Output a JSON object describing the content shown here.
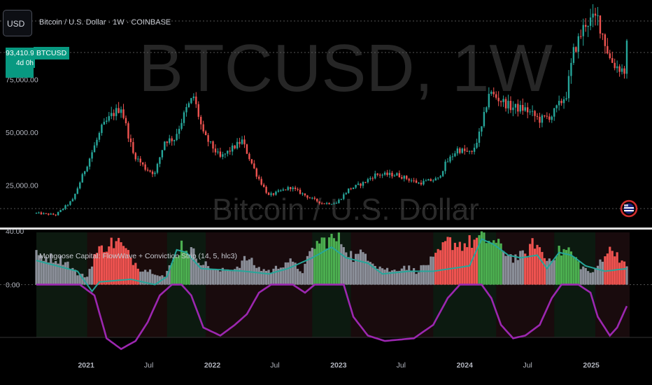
{
  "toolbar": {
    "currency_button": "USD"
  },
  "symbol": {
    "title": "Bitcoin / U.S. Dollar · 1W · COINBASE",
    "ticker": "BTCUSD",
    "price_label": "93,410.97",
    "countdown": "4d 0h"
  },
  "watermark": {
    "ticker": "BTCUSD, 1W",
    "name": "Bitcoin / U.S. Dollar"
  },
  "indicator": {
    "label": "Mongoose Capital: FlowWave + Conviction Strip (14, 5, hlc3)"
  },
  "colors": {
    "bull": "#26a69a",
    "bear": "#ef5350",
    "flow": "#26a69a",
    "wave": "#9c27b0",
    "bar_gray": "#8b8f99",
    "bar_red": "#ef5350",
    "bar_green": "#4caf50"
  },
  "chart_data": [
    {
      "type": "candlestick",
      "title": "Bitcoin / U.S. Dollar · 1W · COINBASE",
      "y_ticks": [
        "25,000.00",
        "50,000.00",
        "75,000.00"
      ],
      "ylim": [
        5000,
        110000
      ],
      "x_ticks": [
        "2021",
        "Jul",
        "2022",
        "Jul",
        "2023",
        "Jul",
        "2024",
        "Jul",
        "2025"
      ],
      "x_tick_dates": [
        "2021-01-01",
        "2021-07-01",
        "2022-01-01",
        "2022-07-01",
        "2023-01-01",
        "2023-07-01",
        "2024-01-01",
        "2024-07-01",
        "2025-01-01"
      ],
      "date_range": [
        "2020-08-10",
        "2025-04-14"
      ],
      "last_price": 93410.97,
      "close_path": [
        [
          "2020-08-10",
          11800
        ],
        [
          "2020-10-05",
          11000
        ],
        [
          "2020-11-23",
          18000
        ],
        [
          "2021-01-04",
          35000
        ],
        [
          "2021-02-15",
          52000
        ],
        [
          "2021-03-15",
          58000
        ],
        [
          "2021-04-12",
          62000
        ],
        [
          "2021-05-17",
          40000
        ],
        [
          "2021-06-21",
          33000
        ],
        [
          "2021-07-19",
          30500
        ],
        [
          "2021-08-16",
          46000
        ],
        [
          "2021-09-13",
          47000
        ],
        [
          "2021-10-18",
          61000
        ],
        [
          "2021-11-08",
          67000
        ],
        [
          "2021-12-06",
          49000
        ],
        [
          "2022-01-24",
          38000
        ],
        [
          "2022-03-28",
          46000
        ],
        [
          "2022-05-09",
          30000
        ],
        [
          "2022-06-13",
          20000
        ],
        [
          "2022-08-15",
          24000
        ],
        [
          "2022-10-10",
          19000
        ],
        [
          "2022-11-14",
          16500
        ],
        [
          "2022-12-26",
          16600
        ],
        [
          "2023-01-30",
          23000
        ],
        [
          "2023-03-13",
          26000
        ],
        [
          "2023-04-17",
          30000
        ],
        [
          "2023-06-19",
          30000
        ],
        [
          "2023-08-21",
          26000
        ],
        [
          "2023-10-16",
          28000
        ],
        [
          "2023-11-06",
          35000
        ],
        [
          "2023-12-11",
          42000
        ],
        [
          "2024-01-22",
          40000
        ],
        [
          "2024-02-19",
          52000
        ],
        [
          "2024-03-11",
          69000
        ],
        [
          "2024-05-13",
          62000
        ],
        [
          "2024-06-24",
          61000
        ],
        [
          "2024-08-05",
          56000
        ],
        [
          "2024-09-09",
          58000
        ],
        [
          "2024-10-21",
          68000
        ],
        [
          "2024-11-11",
          88000
        ],
        [
          "2024-12-16",
          102000
        ],
        [
          "2025-01-20",
          104000
        ],
        [
          "2025-02-24",
          85000
        ],
        [
          "2025-03-10",
          82000
        ],
        [
          "2025-04-07",
          79000
        ],
        [
          "2025-04-14",
          93410.97
        ]
      ]
    },
    {
      "type": "bar",
      "title": "Mongoose Capital: FlowWave + Conviction Strip (14, 5, hlc3)",
      "y_ticks": [
        "40.00",
        "0.00"
      ],
      "ylim": [
        -55,
        40
      ],
      "bar_anchors": [
        [
          "2020-08-10",
          22,
          "gray"
        ],
        [
          "2020-11-02",
          18,
          "gray"
        ],
        [
          "2020-12-07",
          8,
          "gray"
        ],
        [
          "2021-01-04",
          6,
          "gray"
        ],
        [
          "2021-01-25",
          22,
          "red"
        ],
        [
          "2021-03-01",
          30,
          "red"
        ],
        [
          "2021-04-05",
          32,
          "red"
        ],
        [
          "2021-05-10",
          20,
          "red"
        ],
        [
          "2021-06-07",
          12,
          "gray"
        ],
        [
          "2021-07-12",
          10,
          "gray"
        ],
        [
          "2021-08-16",
          6,
          "gray"
        ],
        [
          "2021-09-06",
          16,
          "green"
        ],
        [
          "2021-10-04",
          30,
          "green"
        ],
        [
          "2021-11-01",
          25,
          "gray"
        ],
        [
          "2021-12-06",
          16,
          "gray"
        ],
        [
          "2022-01-17",
          10,
          "gray"
        ],
        [
          "2022-03-07",
          12,
          "gray"
        ],
        [
          "2022-04-11",
          20,
          "gray"
        ],
        [
          "2022-05-16",
          12,
          "gray"
        ],
        [
          "2022-06-20",
          10,
          "gray"
        ],
        [
          "2022-08-08",
          18,
          "gray"
        ],
        [
          "2022-09-19",
          10,
          "gray"
        ],
        [
          "2022-10-24",
          30,
          "green"
        ],
        [
          "2022-12-05",
          34,
          "green"
        ],
        [
          "2023-01-09",
          33,
          "gray"
        ],
        [
          "2023-02-13",
          20,
          "gray"
        ],
        [
          "2023-03-20",
          24,
          "gray"
        ],
        [
          "2023-04-24",
          14,
          "gray"
        ],
        [
          "2023-06-05",
          10,
          "gray"
        ],
        [
          "2023-07-10",
          14,
          "gray"
        ],
        [
          "2023-08-14",
          10,
          "gray"
        ],
        [
          "2023-10-09",
          20,
          "red"
        ],
        [
          "2023-11-13",
          32,
          "red"
        ],
        [
          "2024-01-01",
          30,
          "red"
        ],
        [
          "2024-02-12",
          34,
          "green"
        ],
        [
          "2024-03-18",
          33,
          "green"
        ],
        [
          "2024-04-22",
          26,
          "gray"
        ],
        [
          "2024-05-20",
          20,
          "gray"
        ],
        [
          "2024-06-24",
          22,
          "red"
        ],
        [
          "2024-07-22",
          32,
          "red"
        ],
        [
          "2024-08-26",
          18,
          "gray"
        ],
        [
          "2024-09-23",
          24,
          "green"
        ],
        [
          "2024-10-28",
          26,
          "green"
        ],
        [
          "2024-12-02",
          14,
          "gray"
        ],
        [
          "2025-01-06",
          8,
          "gray"
        ],
        [
          "2025-02-10",
          24,
          "red"
        ],
        [
          "2025-03-10",
          26,
          "red"
        ],
        [
          "2025-04-14",
          12,
          "gray"
        ]
      ],
      "flow_path": [
        [
          "2020-08-10",
          18
        ],
        [
          "2020-12-07",
          10
        ],
        [
          "2021-01-18",
          -5
        ],
        [
          "2021-02-08",
          2
        ],
        [
          "2021-05-10",
          4
        ],
        [
          "2021-07-19",
          0
        ],
        [
          "2021-08-23",
          6
        ],
        [
          "2021-09-20",
          26
        ],
        [
          "2021-10-18",
          24
        ],
        [
          "2021-11-29",
          12
        ],
        [
          "2022-04-04",
          10
        ],
        [
          "2022-06-13",
          8
        ],
        [
          "2022-08-08",
          12
        ],
        [
          "2022-10-17",
          20
        ],
        [
          "2022-12-12",
          28
        ],
        [
          "2023-01-23",
          20
        ],
        [
          "2023-03-27",
          16
        ],
        [
          "2023-05-08",
          8
        ],
        [
          "2023-07-24",
          10
        ],
        [
          "2023-10-02",
          10
        ],
        [
          "2024-01-15",
          14
        ],
        [
          "2024-02-19",
          34
        ],
        [
          "2024-03-25",
          30
        ],
        [
          "2024-05-06",
          22
        ],
        [
          "2024-06-10",
          20
        ],
        [
          "2024-07-29",
          22
        ],
        [
          "2024-08-26",
          12
        ],
        [
          "2024-09-30",
          24
        ],
        [
          "2024-11-04",
          22
        ],
        [
          "2024-12-16",
          14
        ],
        [
          "2025-02-10",
          10
        ],
        [
          "2025-04-14",
          12
        ]
      ],
      "wave_path": [
        [
          "2020-08-10",
          0
        ],
        [
          "2020-12-14",
          0
        ],
        [
          "2021-01-25",
          -8
        ],
        [
          "2021-03-01",
          -40
        ],
        [
          "2021-04-12",
          -48
        ],
        [
          "2021-05-24",
          -42
        ],
        [
          "2021-06-28",
          -28
        ],
        [
          "2021-08-02",
          -8
        ],
        [
          "2021-09-06",
          0
        ],
        [
          "2021-10-04",
          0
        ],
        [
          "2021-11-01",
          -8
        ],
        [
          "2021-12-06",
          -32
        ],
        [
          "2022-01-24",
          -38
        ],
        [
          "2022-03-07",
          -30
        ],
        [
          "2022-04-11",
          -22
        ],
        [
          "2022-05-16",
          -6
        ],
        [
          "2022-06-20",
          0
        ],
        [
          "2022-08-22",
          0
        ],
        [
          "2022-09-26",
          -6
        ],
        [
          "2022-10-24",
          0
        ],
        [
          "2023-01-16",
          0
        ],
        [
          "2023-02-13",
          -24
        ],
        [
          "2023-03-27",
          -38
        ],
        [
          "2023-05-15",
          -42
        ],
        [
          "2023-08-07",
          -40
        ],
        [
          "2023-10-02",
          -30
        ],
        [
          "2023-11-13",
          -10
        ],
        [
          "2023-12-18",
          0
        ],
        [
          "2024-02-19",
          0
        ],
        [
          "2024-03-18",
          -10
        ],
        [
          "2024-04-15",
          -30
        ],
        [
          "2024-05-20",
          -40
        ],
        [
          "2024-06-24",
          -38
        ],
        [
          "2024-08-05",
          -30
        ],
        [
          "2024-09-09",
          -10
        ],
        [
          "2024-10-07",
          0
        ],
        [
          "2024-11-25",
          0
        ],
        [
          "2024-12-30",
          -6
        ],
        [
          "2025-01-20",
          -24
        ],
        [
          "2025-02-24",
          -38
        ],
        [
          "2025-03-17",
          -32
        ],
        [
          "2025-04-14",
          -16
        ]
      ]
    }
  ]
}
